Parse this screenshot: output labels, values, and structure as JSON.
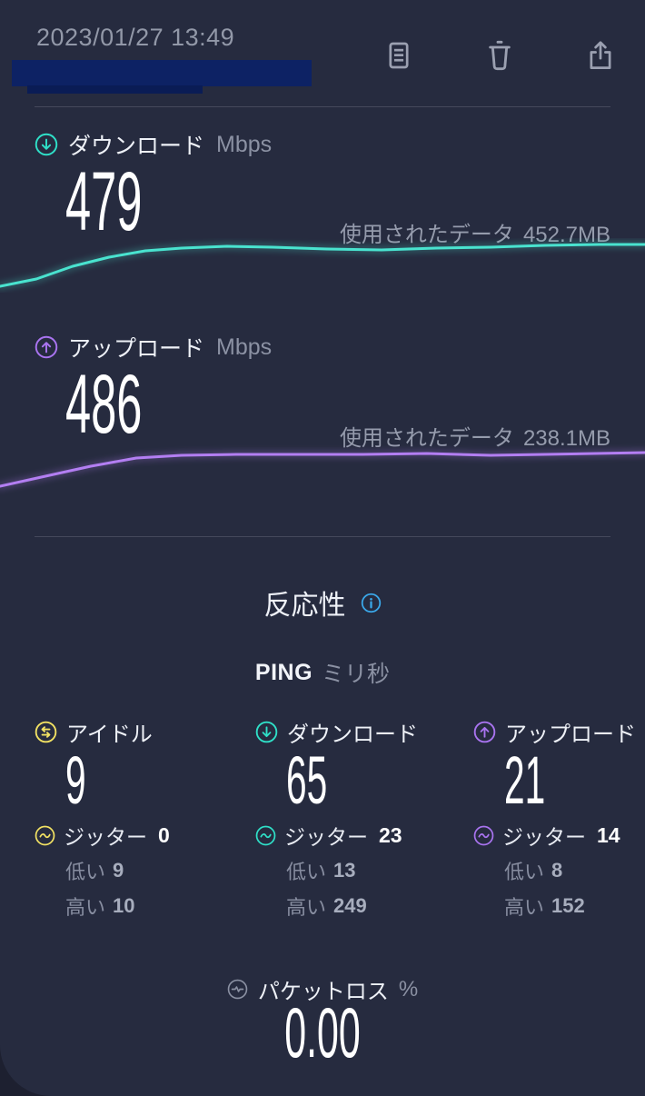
{
  "header": {
    "timestamp": "2023/01/27 13:49"
  },
  "sections": {
    "download": {
      "label": "ダウンロード",
      "unit": "Mbps",
      "value": "479",
      "data_used_label": "使用されたデータ",
      "data_used_value": "452.7MB"
    },
    "upload": {
      "label": "アップロード",
      "unit": "Mbps",
      "value": "486",
      "data_used_label": "使用されたデータ",
      "data_used_value": "238.1MB"
    }
  },
  "responsiveness": {
    "title": "反応性",
    "ping_label": "PING",
    "ping_unit": "ミリ秒",
    "columns": [
      {
        "label": "アイドル",
        "value": "9",
        "jitter_label": "ジッター",
        "jitter_value": "0",
        "low_label": "低い",
        "low_value": "9",
        "high_label": "高い",
        "high_value": "10"
      },
      {
        "label": "ダウンロード",
        "value": "65",
        "jitter_label": "ジッター",
        "jitter_value": "23",
        "low_label": "低い",
        "low_value": "13",
        "high_label": "高い",
        "high_value": "249"
      },
      {
        "label": "アップロード",
        "value": "21",
        "jitter_label": "ジッター",
        "jitter_value": "14",
        "low_label": "低い",
        "low_value": "8",
        "high_label": "高い",
        "high_value": "152"
      }
    ]
  },
  "packet_loss": {
    "label": "パケットロス",
    "unit": "%",
    "value": "0.00"
  },
  "colors": {
    "accent_download": "#2fe0c8",
    "accent_upload": "#a974f0",
    "accent_idle": "#f2e263",
    "info_blue": "#3aa7e8",
    "packet_loss_grey": "#8b91a3",
    "redaction_navy": "#0d2264",
    "card_background": "#262b3f"
  },
  "charts": [
    {
      "name": "download-speed-curve",
      "color": "#49e3cf",
      "points": [
        [
          0,
          53
        ],
        [
          40,
          45
        ],
        [
          80,
          31
        ],
        [
          120,
          21
        ],
        [
          160,
          14
        ],
        [
          200,
          11
        ],
        [
          250,
          9
        ],
        [
          300,
          10
        ],
        [
          360,
          12
        ],
        [
          420,
          13
        ],
        [
          480,
          11
        ],
        [
          540,
          10
        ],
        [
          600,
          8
        ],
        [
          660,
          7
        ],
        [
          710,
          7
        ]
      ]
    },
    {
      "name": "upload-speed-curve",
      "color": "#b37ef2",
      "points": [
        [
          0,
          50
        ],
        [
          50,
          39
        ],
        [
          100,
          28
        ],
        [
          150,
          19
        ],
        [
          200,
          16
        ],
        [
          260,
          15
        ],
        [
          330,
          15
        ],
        [
          400,
          15
        ],
        [
          470,
          14
        ],
        [
          540,
          16
        ],
        [
          600,
          15
        ],
        [
          710,
          13
        ]
      ]
    }
  ]
}
